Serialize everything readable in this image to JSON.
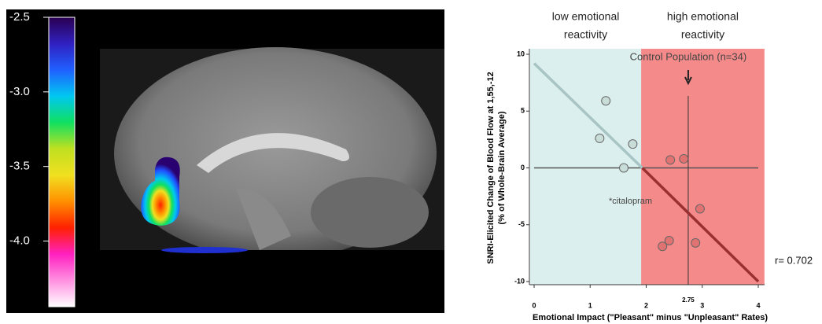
{
  "chart_data": [
    {
      "type": "colorbar-image",
      "colorbar": {
        "lim": [
          -4.44,
          -2.5
        ],
        "ticks": [
          -2.5,
          {
            "value": -3,
            "label": "-3.0"
          },
          -3.5,
          {
            "value": -4,
            "label": "-4.0"
          }
        ],
        "colormap": [
          "#2a0050",
          "#3020c0",
          "#2060ff",
          "#00c8f0",
          "#10e060",
          "#c0e020",
          "#f0e020",
          "#ff9000",
          "#ff2000",
          "#ff20c0",
          "#ff90e0",
          "#ffffff"
        ]
      }
    },
    {
      "type": "scatter",
      "xlim": [
        0,
        4
      ],
      "ylim": [
        -10,
        10
      ],
      "xticks": [
        0,
        1,
        2,
        3,
        4
      ],
      "yticks": [
        -10,
        -5,
        0,
        5,
        10
      ],
      "xlabel": "Emotional Impact  (\"Pleasant\" minus \"Unpleasant\" Rates)",
      "ylabel": [
        "SNRI-Elicited  Change of Blood Flow at 1,55,-12",
        "(% of Whole-Brain Average)"
      ],
      "regions": [
        {
          "label": [
            "low emotional",
            "reactivity"
          ],
          "color": "#dcefef",
          "x": [
            -0.07,
            1.91
          ]
        },
        {
          "label": [
            "high emotional",
            "reactivity"
          ],
          "color": "#f48a8a",
          "x": [
            1.91,
            4.11
          ]
        }
      ],
      "series": [
        {
          "color": "#c8dcd8",
          "x": [
            1.28,
            1.17,
            1.76,
            1.6
          ],
          "values": [
            5.9,
            2.6,
            2.1,
            0
          ]
        },
        {
          "color": "#e07272",
          "x": [
            2.43,
            2.67,
            2.96,
            2.41,
            2.29,
            2.88
          ],
          "values": [
            0.7,
            0.8,
            -3.6,
            -6.4,
            -6.9,
            -6.6
          ]
        }
      ],
      "fit_lines": [
        {
          "color": "#a8c4c4",
          "x": [
            0,
            1.93
          ],
          "values": [
            9.2,
            0
          ]
        },
        {
          "color": "#9a3030",
          "x": [
            1.93,
            4
          ],
          "values": [
            0,
            -10
          ]
        }
      ],
      "hline": 0,
      "vline": {
        "value": 2.75,
        "label": "2.75"
      },
      "annotations": {
        "control": "Control Population (n=34)",
        "citalopram": "*citalopram",
        "r": "r= 0.702"
      }
    }
  ]
}
